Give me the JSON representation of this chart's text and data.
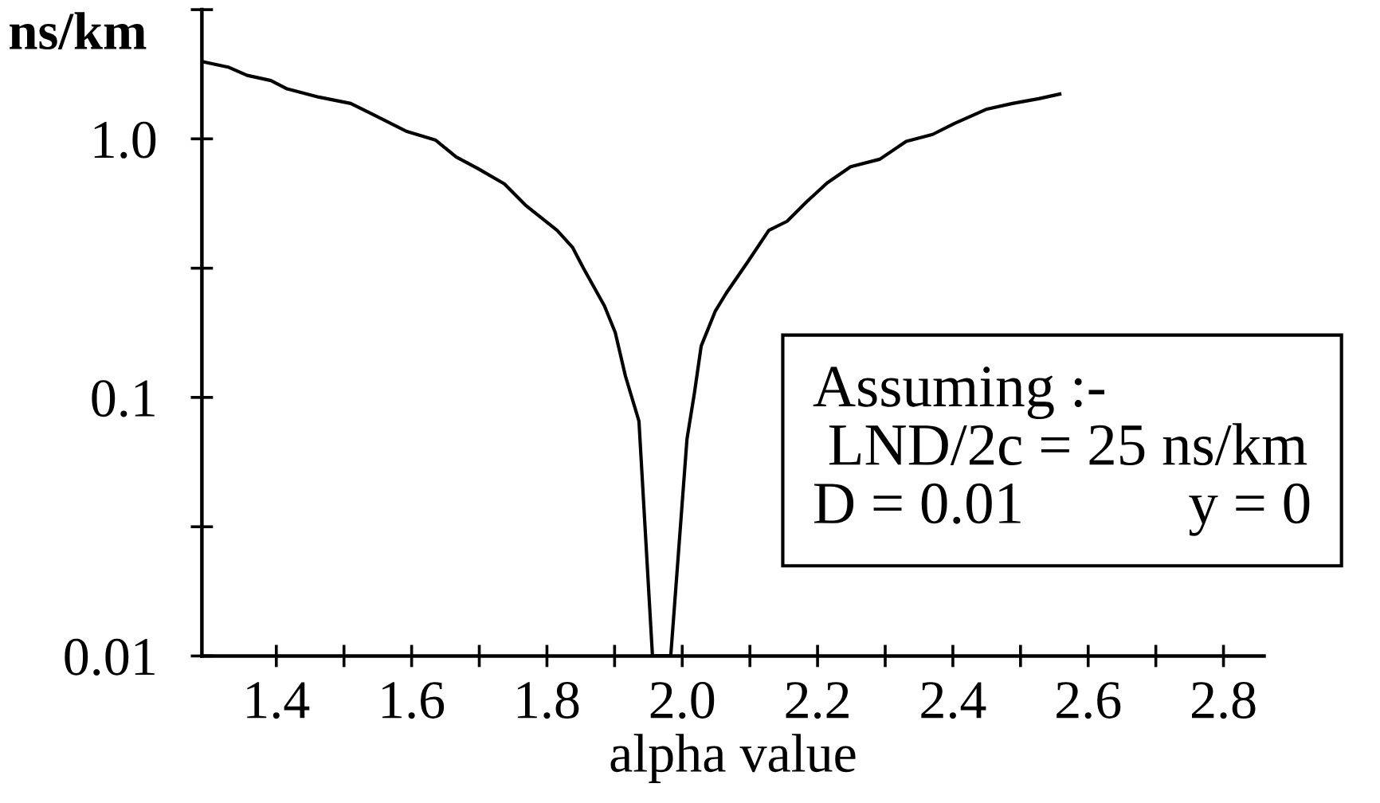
{
  "chart_data": {
    "type": "line",
    "xlabel": "alpha value",
    "ylabel": "ns/km",
    "annotations": [
      "Assuming :-",
      " LND/2c = 25 ns/km",
      "D = 0.01           y = 0"
    ],
    "x": [
      1.29,
      1.33,
      1.357,
      1.392,
      1.416,
      1.463,
      1.51,
      1.541,
      1.592,
      1.635,
      1.666,
      1.697,
      1.737,
      1.768,
      1.815,
      1.838,
      1.854,
      1.885,
      1.901,
      1.916,
      1.936,
      1.956,
      1.983,
      2.007,
      2.018,
      2.028,
      2.049,
      2.065,
      2.096,
      2.128,
      2.155,
      2.183,
      2.214,
      2.249,
      2.292,
      2.331,
      2.37,
      2.402,
      2.449,
      2.488,
      2.527,
      2.558
    ],
    "series": [
      {
        "color": "#000000",
        "values": [
          1.99,
          1.89,
          1.76,
          1.68,
          1.56,
          1.45,
          1.37,
          1.25,
          1.07,
          0.99,
          0.85,
          0.77,
          0.67,
          0.555,
          0.443,
          0.38,
          0.316,
          0.226,
          0.178,
          0.121,
          0.081,
          0.01,
          0.01,
          0.069,
          0.104,
          0.158,
          0.216,
          0.253,
          0.332,
          0.443,
          0.48,
          0.568,
          0.675,
          0.78,
          0.834,
          0.977,
          1.04,
          1.145,
          1.3,
          1.37,
          1.43,
          1.49
        ]
      }
    ],
    "log": "y",
    "xlim": [
      1.29,
      2.86
    ],
    "xticks": [
      1.4,
      {
        "value": 1.5,
        "label": null
      },
      1.6,
      {
        "value": 1.7,
        "label": null
      },
      1.8,
      {
        "value": 1.9,
        "label": null
      },
      {
        "value": 2,
        "label": "2.0"
      },
      {
        "value": 2.1,
        "label": null
      },
      2.2,
      {
        "value": 2.3,
        "label": null
      },
      2.4,
      {
        "value": 2.5,
        "label": null
      },
      2.6,
      {
        "value": 2.7,
        "label": null
      },
      2.8
    ],
    "ylim": [
      0.01,
      3.16
    ],
    "yticks": [
      0.01,
      {
        "value": 0.0316,
        "label": null
      },
      0.1,
      {
        "value": 0.316,
        "label": null
      },
      {
        "value": 1,
        "label": "1.0"
      },
      {
        "value": 3.16,
        "label": null
      }
    ],
    "grid": false,
    "legend": false,
    "marker": "none",
    "line_style": "solid"
  }
}
